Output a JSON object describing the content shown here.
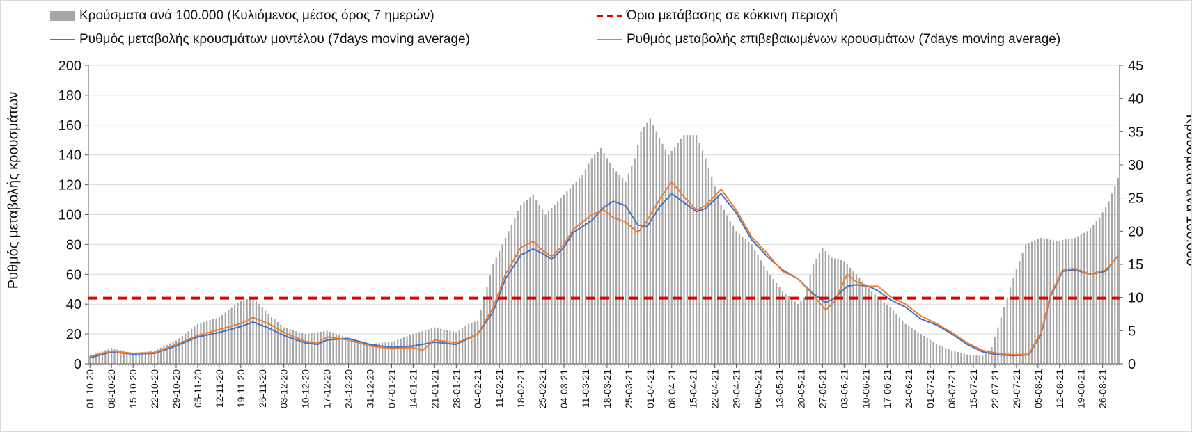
{
  "chart_data": {
    "type": "bar+line",
    "title": "",
    "ylabel_left": "Ρυθμός μεταβολής κρουσμάτων",
    "ylabel_right": "Κρούσματα ανά 100.000",
    "ylim_left": [
      0,
      200
    ],
    "yticks_left": [
      0,
      20,
      40,
      60,
      80,
      100,
      120,
      140,
      160,
      180,
      200
    ],
    "ylim_right": [
      0,
      45
    ],
    "yticks_right": [
      0,
      5,
      10,
      15,
      20,
      25,
      30,
      35,
      40,
      45
    ],
    "threshold_left": 44,
    "x_start": "2020-10-01",
    "x_end": "2021-08-31",
    "x_tick_labels": [
      "01-10-20",
      "08-10-20",
      "15-10-20",
      "22-10-20",
      "29-10-20",
      "05-11-20",
      "12-11-20",
      "19-11-20",
      "26-11-20",
      "03-12-20",
      "10-12-20",
      "17-12-20",
      "24-12-20",
      "31-12-20",
      "07-01-21",
      "14-01-21",
      "21-01-21",
      "28-01-21",
      "04-02-21",
      "11-02-21",
      "18-02-21",
      "25-02-21",
      "04-03-21",
      "11-03-21",
      "18-03-21",
      "25-03-21",
      "01-04-21",
      "08-04-21",
      "15-04-21",
      "22-04-21",
      "29-04-21",
      "06-05-21",
      "13-05-21",
      "20-05-21",
      "27-05-21",
      "03-06-21",
      "10-06-21",
      "17-06-21",
      "24-06-21",
      "01-07-21",
      "08-07-21",
      "15-07-21",
      "22-07-21",
      "29-07-21",
      "05-08-21",
      "12-08-21",
      "19-08-21",
      "26-08-21"
    ],
    "series": [
      {
        "name": "Κρούσματα ανά 100.000 (Κυλιόμενος μέσος όρος 7 ημερών)",
        "axis": "right",
        "kind": "bar",
        "color": "#a6a6a6",
        "keyframes": [
          [
            0,
            1.2
          ],
          [
            7,
            2.4
          ],
          [
            14,
            1.6
          ],
          [
            21,
            2.0
          ],
          [
            28,
            3.5
          ],
          [
            35,
            6.0
          ],
          [
            42,
            7.0
          ],
          [
            49,
            9.5
          ],
          [
            53,
            10.0
          ],
          [
            58,
            7.5
          ],
          [
            63,
            5.5
          ],
          [
            70,
            4.5
          ],
          [
            77,
            5.0
          ],
          [
            84,
            3.8
          ],
          [
            91,
            3.0
          ],
          [
            98,
            3.3
          ],
          [
            105,
            4.5
          ],
          [
            112,
            5.5
          ],
          [
            119,
            4.8
          ],
          [
            123,
            6.0
          ],
          [
            126,
            6.5
          ],
          [
            131,
            15
          ],
          [
            135,
            19
          ],
          [
            140,
            24
          ],
          [
            144,
            25.5
          ],
          [
            148,
            22.5
          ],
          [
            154,
            25.5
          ],
          [
            160,
            28.5
          ],
          [
            163,
            31.0
          ],
          [
            166,
            32.5
          ],
          [
            170,
            29.5
          ],
          [
            174,
            27.5
          ],
          [
            177,
            31
          ],
          [
            179,
            35
          ],
          [
            182,
            37
          ],
          [
            185,
            34
          ],
          [
            188,
            31.5
          ],
          [
            193,
            34.5
          ],
          [
            197,
            34.5
          ],
          [
            200,
            31
          ],
          [
            205,
            24
          ],
          [
            210,
            20
          ],
          [
            215,
            18
          ],
          [
            220,
            14
          ],
          [
            225,
            11
          ],
          [
            230,
            9.0
          ],
          [
            232,
            10.0
          ],
          [
            235,
            15
          ],
          [
            238,
            17.5
          ],
          [
            241,
            16
          ],
          [
            245,
            15.5
          ],
          [
            250,
            13
          ],
          [
            255,
            10.5
          ],
          [
            260,
            8.5
          ],
          [
            265,
            6.0
          ],
          [
            270,
            4.5
          ],
          [
            275,
            3.0
          ],
          [
            280,
            2.0
          ],
          [
            285,
            1.4
          ],
          [
            290,
            1.2
          ],
          [
            293,
            2.5
          ],
          [
            296,
            7
          ],
          [
            300,
            13
          ],
          [
            304,
            18
          ],
          [
            309,
            19
          ],
          [
            314,
            18.5
          ],
          [
            320,
            19
          ],
          [
            324,
            20
          ],
          [
            328,
            22
          ],
          [
            331,
            24.5
          ],
          [
            334,
            28
          ],
          [
            337,
            34
          ],
          [
            340,
            37
          ],
          [
            342,
            38
          ],
          [
            345,
            33
          ],
          [
            349,
            25
          ],
          [
            353,
            15
          ],
          [
            355,
            11
          ],
          [
            356,
            9.0
          ]
        ],
        "note": "daily values, linearly interpolated between keyframes (day index from 01-10-20, value in cases per 100,000)"
      },
      {
        "name": "Ρυθμός μεταβολής κρουσμάτων μοντέλου (7days moving average)",
        "axis": "left",
        "kind": "line",
        "color": "#4472c4",
        "keyframes": [
          [
            0,
            4
          ],
          [
            7,
            8
          ],
          [
            14,
            6.5
          ],
          [
            21,
            7
          ],
          [
            28,
            12
          ],
          [
            35,
            18
          ],
          [
            42,
            21
          ],
          [
            49,
            25
          ],
          [
            53,
            28
          ],
          [
            58,
            24
          ],
          [
            63,
            19
          ],
          [
            70,
            14
          ],
          [
            74,
            13
          ],
          [
            77,
            16
          ],
          [
            84,
            17
          ],
          [
            91,
            13
          ],
          [
            98,
            11
          ],
          [
            105,
            12
          ],
          [
            112,
            14.5
          ],
          [
            119,
            13
          ],
          [
            126,
            20
          ],
          [
            131,
            35
          ],
          [
            135,
            57
          ],
          [
            140,
            73
          ],
          [
            144,
            77
          ],
          [
            147,
            74
          ],
          [
            150,
            70
          ],
          [
            154,
            78
          ],
          [
            157,
            88
          ],
          [
            163,
            96
          ],
          [
            167,
            105
          ],
          [
            170,
            109
          ],
          [
            174,
            106
          ],
          [
            178,
            93
          ],
          [
            181,
            92
          ],
          [
            185,
            105
          ],
          [
            189,
            114
          ],
          [
            193,
            108
          ],
          [
            197,
            102
          ],
          [
            200,
            104
          ],
          [
            205,
            114
          ],
          [
            210,
            101
          ],
          [
            215,
            83
          ],
          [
            220,
            72
          ],
          [
            225,
            63
          ],
          [
            230,
            57
          ],
          [
            235,
            47
          ],
          [
            239,
            41
          ],
          [
            242,
            44
          ],
          [
            246,
            52
          ],
          [
            249,
            53
          ],
          [
            253,
            52
          ],
          [
            256,
            49
          ],
          [
            260,
            43
          ],
          [
            265,
            38
          ],
          [
            270,
            30
          ],
          [
            275,
            26
          ],
          [
            280,
            20
          ],
          [
            285,
            13
          ],
          [
            290,
            8
          ],
          [
            295,
            6
          ],
          [
            300,
            5.5
          ],
          [
            305,
            6
          ],
          [
            309,
            20
          ],
          [
            312,
            45
          ],
          [
            316,
            62
          ],
          [
            320,
            63
          ],
          [
            325,
            60
          ],
          [
            330,
            62
          ],
          [
            335,
            75
          ],
          [
            338,
            76
          ],
          [
            342,
            80
          ],
          [
            345,
            98
          ],
          [
            349,
            117
          ],
          [
            352,
            115
          ],
          [
            355,
            100
          ],
          [
            359,
            75
          ],
          [
            363,
            52
          ],
          [
            366,
            36
          ],
          [
            368,
            29
          ]
        ]
      },
      {
        "name": "Ρυθμός μεταβολής επιβεβαιωμένων κρουσμάτων (7days moving average)",
        "axis": "left",
        "kind": "line",
        "color": "#ed7d31",
        "keyframes": [
          [
            0,
            5
          ],
          [
            7,
            8.5
          ],
          [
            14,
            7
          ],
          [
            21,
            7.5
          ],
          [
            28,
            13
          ],
          [
            35,
            19
          ],
          [
            42,
            23
          ],
          [
            49,
            27
          ],
          [
            53,
            31
          ],
          [
            58,
            27
          ],
          [
            63,
            21
          ],
          [
            70,
            15
          ],
          [
            74,
            14
          ],
          [
            77,
            18
          ],
          [
            84,
            16
          ],
          [
            91,
            12
          ],
          [
            98,
            10
          ],
          [
            105,
            11
          ],
          [
            108,
            9
          ],
          [
            112,
            16
          ],
          [
            119,
            14
          ],
          [
            126,
            20
          ],
          [
            131,
            38
          ],
          [
            135,
            60
          ],
          [
            140,
            78
          ],
          [
            144,
            82
          ],
          [
            147,
            76
          ],
          [
            150,
            72
          ],
          [
            154,
            80
          ],
          [
            157,
            90
          ],
          [
            163,
            100
          ],
          [
            167,
            103
          ],
          [
            170,
            98
          ],
          [
            174,
            95
          ],
          [
            178,
            88
          ],
          [
            181,
            96
          ],
          [
            185,
            110
          ],
          [
            189,
            122
          ],
          [
            193,
            112
          ],
          [
            197,
            103
          ],
          [
            200,
            106
          ],
          [
            205,
            117
          ],
          [
            210,
            103
          ],
          [
            215,
            85
          ],
          [
            220,
            74
          ],
          [
            225,
            62
          ],
          [
            230,
            57
          ],
          [
            235,
            46
          ],
          [
            239,
            36
          ],
          [
            242,
            42
          ],
          [
            246,
            60
          ],
          [
            249,
            55
          ],
          [
            253,
            52
          ],
          [
            256,
            52
          ],
          [
            260,
            45
          ],
          [
            265,
            40
          ],
          [
            270,
            32
          ],
          [
            275,
            27
          ],
          [
            280,
            21
          ],
          [
            285,
            14
          ],
          [
            290,
            9
          ],
          [
            295,
            7
          ],
          [
            300,
            6
          ],
          [
            305,
            6.5
          ],
          [
            309,
            21
          ],
          [
            312,
            46
          ],
          [
            316,
            63
          ],
          [
            320,
            64
          ],
          [
            325,
            60
          ],
          [
            330,
            63
          ],
          [
            335,
            74
          ],
          [
            338,
            76
          ],
          [
            342,
            82
          ],
          [
            345,
            100
          ],
          [
            349,
            119
          ],
          [
            352,
            120
          ],
          [
            355,
            104
          ],
          [
            359,
            78
          ],
          [
            363,
            54
          ],
          [
            366,
            38
          ],
          [
            368,
            30
          ]
        ]
      },
      {
        "name": "Όριο μετάβασης σε κόκκινη περιοχή",
        "axis": "left",
        "kind": "threshold",
        "color": "#e00000",
        "value": 44
      }
    ]
  },
  "legend": {
    "bars": "Κρούσματα ανά 100.000 (Κυλιόμενος μέσος όρος 7 ημερών)",
    "threshold": "Όριο μετάβασης σε κόκκινη περιοχή",
    "model": "Ρυθμός μεταβολής κρουσμάτων μοντέλου (7days moving average)",
    "confirmed": "Ρυθμός μεταβολής επιβεβαιωμένων κρουσμάτων (7days moving average)"
  }
}
